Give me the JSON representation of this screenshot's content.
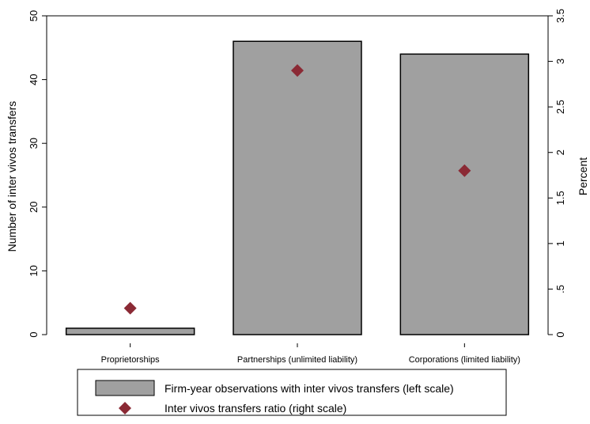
{
  "chart_data": {
    "type": "bar",
    "categories": [
      "Proprietorships",
      "Partnerships (unlimited liability)",
      "Corporations (limited liability)"
    ],
    "series": [
      {
        "name": "Firm-year observations with inter vivos transfers (left scale)",
        "type": "bar",
        "axis": "left",
        "values": [
          1,
          46,
          44
        ],
        "color": "#a0a0a0"
      },
      {
        "name": "Inter vivos transfers ratio (right scale)",
        "type": "scatter",
        "marker": "diamond",
        "axis": "right",
        "values": [
          0.29,
          2.9,
          1.8
        ],
        "color": "#8b2a35"
      }
    ],
    "ylabel_left": "Number of inter vivos transfers",
    "ylabel_right": "Percent",
    "ylim_left": [
      0,
      50
    ],
    "ylim_right": [
      0,
      3.5
    ],
    "yticks_left": [
      "0",
      "10",
      "20",
      "30",
      "40",
      "50"
    ],
    "yticks_right": [
      "0",
      ".5",
      "1",
      "1.5",
      "2",
      "2.5",
      "3",
      "3.5"
    ],
    "grid": false,
    "legend_position": "bottom"
  }
}
